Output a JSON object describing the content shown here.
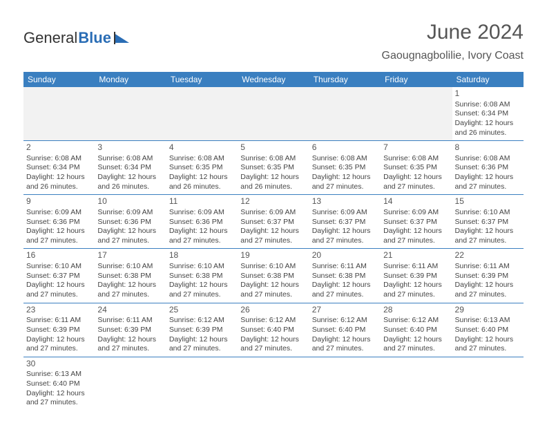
{
  "logo": {
    "text1": "General",
    "text2": "Blue"
  },
  "title": "June 2024",
  "location": "Gaougnagbolilie, Ivory Coast",
  "colors": {
    "header_bg": "#3a7fc0",
    "header_fg": "#ffffff",
    "blank_bg": "#f2f2f2",
    "text": "#444444",
    "accent": "#2a6db5"
  },
  "dayNames": [
    "Sunday",
    "Monday",
    "Tuesday",
    "Wednesday",
    "Thursday",
    "Friday",
    "Saturday"
  ],
  "weeks": [
    [
      null,
      null,
      null,
      null,
      null,
      null,
      {
        "n": "1",
        "sr": "6:08 AM",
        "ss": "6:34 PM",
        "dl": "12 hours and 26 minutes."
      }
    ],
    [
      {
        "n": "2",
        "sr": "6:08 AM",
        "ss": "6:34 PM",
        "dl": "12 hours and 26 minutes."
      },
      {
        "n": "3",
        "sr": "6:08 AM",
        "ss": "6:34 PM",
        "dl": "12 hours and 26 minutes."
      },
      {
        "n": "4",
        "sr": "6:08 AM",
        "ss": "6:35 PM",
        "dl": "12 hours and 26 minutes."
      },
      {
        "n": "5",
        "sr": "6:08 AM",
        "ss": "6:35 PM",
        "dl": "12 hours and 26 minutes."
      },
      {
        "n": "6",
        "sr": "6:08 AM",
        "ss": "6:35 PM",
        "dl": "12 hours and 27 minutes."
      },
      {
        "n": "7",
        "sr": "6:08 AM",
        "ss": "6:35 PM",
        "dl": "12 hours and 27 minutes."
      },
      {
        "n": "8",
        "sr": "6:08 AM",
        "ss": "6:36 PM",
        "dl": "12 hours and 27 minutes."
      }
    ],
    [
      {
        "n": "9",
        "sr": "6:09 AM",
        "ss": "6:36 PM",
        "dl": "12 hours and 27 minutes."
      },
      {
        "n": "10",
        "sr": "6:09 AM",
        "ss": "6:36 PM",
        "dl": "12 hours and 27 minutes."
      },
      {
        "n": "11",
        "sr": "6:09 AM",
        "ss": "6:36 PM",
        "dl": "12 hours and 27 minutes."
      },
      {
        "n": "12",
        "sr": "6:09 AM",
        "ss": "6:37 PM",
        "dl": "12 hours and 27 minutes."
      },
      {
        "n": "13",
        "sr": "6:09 AM",
        "ss": "6:37 PM",
        "dl": "12 hours and 27 minutes."
      },
      {
        "n": "14",
        "sr": "6:09 AM",
        "ss": "6:37 PM",
        "dl": "12 hours and 27 minutes."
      },
      {
        "n": "15",
        "sr": "6:10 AM",
        "ss": "6:37 PM",
        "dl": "12 hours and 27 minutes."
      }
    ],
    [
      {
        "n": "16",
        "sr": "6:10 AM",
        "ss": "6:37 PM",
        "dl": "12 hours and 27 minutes."
      },
      {
        "n": "17",
        "sr": "6:10 AM",
        "ss": "6:38 PM",
        "dl": "12 hours and 27 minutes."
      },
      {
        "n": "18",
        "sr": "6:10 AM",
        "ss": "6:38 PM",
        "dl": "12 hours and 27 minutes."
      },
      {
        "n": "19",
        "sr": "6:10 AM",
        "ss": "6:38 PM",
        "dl": "12 hours and 27 minutes."
      },
      {
        "n": "20",
        "sr": "6:11 AM",
        "ss": "6:38 PM",
        "dl": "12 hours and 27 minutes."
      },
      {
        "n": "21",
        "sr": "6:11 AM",
        "ss": "6:39 PM",
        "dl": "12 hours and 27 minutes."
      },
      {
        "n": "22",
        "sr": "6:11 AM",
        "ss": "6:39 PM",
        "dl": "12 hours and 27 minutes."
      }
    ],
    [
      {
        "n": "23",
        "sr": "6:11 AM",
        "ss": "6:39 PM",
        "dl": "12 hours and 27 minutes."
      },
      {
        "n": "24",
        "sr": "6:11 AM",
        "ss": "6:39 PM",
        "dl": "12 hours and 27 minutes."
      },
      {
        "n": "25",
        "sr": "6:12 AM",
        "ss": "6:39 PM",
        "dl": "12 hours and 27 minutes."
      },
      {
        "n": "26",
        "sr": "6:12 AM",
        "ss": "6:40 PM",
        "dl": "12 hours and 27 minutes."
      },
      {
        "n": "27",
        "sr": "6:12 AM",
        "ss": "6:40 PM",
        "dl": "12 hours and 27 minutes."
      },
      {
        "n": "28",
        "sr": "6:12 AM",
        "ss": "6:40 PM",
        "dl": "12 hours and 27 minutes."
      },
      {
        "n": "29",
        "sr": "6:13 AM",
        "ss": "6:40 PM",
        "dl": "12 hours and 27 minutes."
      }
    ],
    [
      {
        "n": "30",
        "sr": "6:13 AM",
        "ss": "6:40 PM",
        "dl": "12 hours and 27 minutes."
      },
      null,
      null,
      null,
      null,
      null,
      null
    ]
  ],
  "labels": {
    "sunrise": "Sunrise: ",
    "sunset": "Sunset: ",
    "daylight": "Daylight: "
  }
}
